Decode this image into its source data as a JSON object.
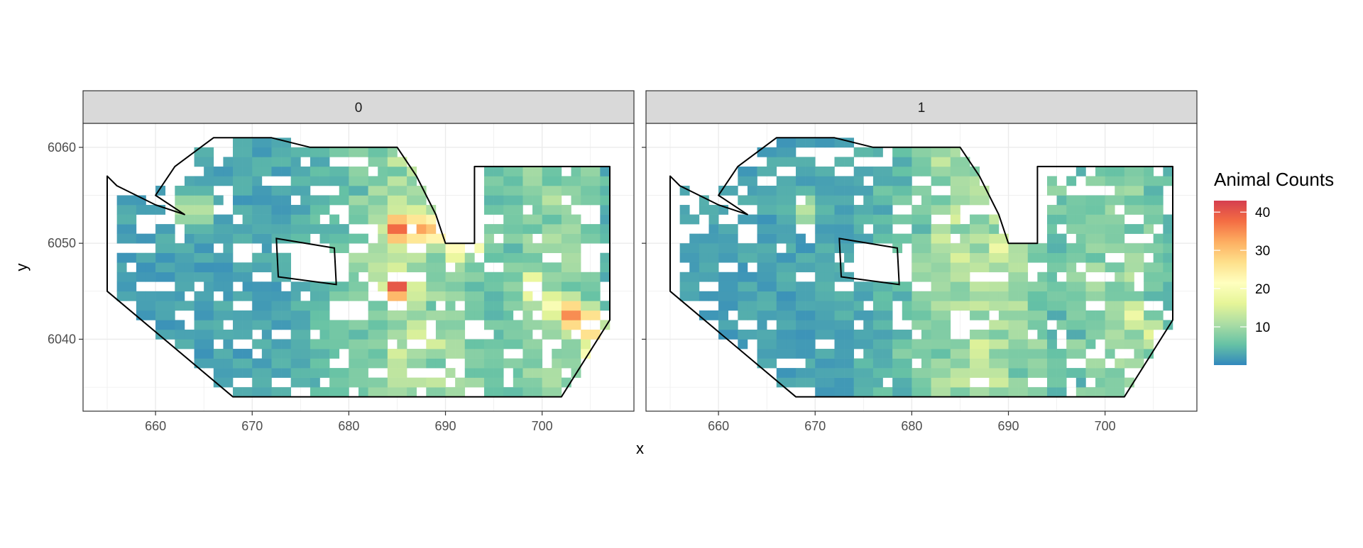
{
  "chart_data": {
    "type": "heatmap",
    "facet_variable_values": [
      "0",
      "1"
    ],
    "xlabel": "x",
    "ylabel": "y",
    "xlim": [
      652.5,
      709.5
    ],
    "ylim": [
      6032.5,
      6062.5
    ],
    "x_ticks": [
      660,
      670,
      680,
      690,
      700
    ],
    "y_ticks": [
      6040,
      6050,
      6060
    ],
    "legend": {
      "title": "Animal Counts",
      "position": "right",
      "ticks": [
        10,
        20,
        30,
        40
      ],
      "range": [
        0,
        43
      ],
      "colors": [
        "#3288BD",
        "#66C2A5",
        "#ABDDA4",
        "#E6F598",
        "#FFFFBF",
        "#FEE08B",
        "#FDAE61",
        "#F46D43",
        "#D53E4F"
      ]
    },
    "grid": "on",
    "cell_size": 1,
    "transects_x": [
      656,
      658,
      660,
      662,
      664,
      666,
      668,
      670,
      672,
      674,
      676,
      678,
      680,
      682,
      684,
      686,
      688,
      690,
      692,
      694,
      696,
      698,
      700,
      702,
      704,
      706
    ],
    "survey_area_boundary": [
      [
        655,
        6057
      ],
      [
        655,
        6045
      ],
      [
        668,
        6034
      ],
      [
        702,
        6034
      ],
      [
        707,
        6042
      ],
      [
        707,
        6058
      ],
      [
        693,
        6058
      ],
      [
        693,
        6050
      ],
      [
        690,
        6050
      ],
      [
        689,
        6053
      ],
      [
        687,
        6057
      ],
      [
        685,
        6060
      ],
      [
        683,
        6060
      ],
      [
        676,
        6060
      ],
      [
        672,
        6061
      ],
      [
        666,
        6061
      ],
      [
        662,
        6058
      ],
      [
        660,
        6055
      ],
      [
        663,
        6053
      ],
      [
        660,
        6054
      ],
      [
        656,
        6056
      ]
    ],
    "exclusion_zone": [
      [
        672.5,
        6050.5
      ],
      [
        678.5,
        6049.5
      ],
      [
        678.7,
        6045.7
      ],
      [
        672.7,
        6046.5
      ]
    ],
    "panels": [
      {
        "label": "0",
        "hotspots": [
          {
            "x": 663,
            "y": 6053,
            "value": 15
          },
          {
            "x": 681,
            "y": 6048,
            "value": 14
          },
          {
            "x": 684,
            "y": 6051,
            "value": 38
          },
          {
            "x": 684,
            "y": 6045,
            "value": 40
          },
          {
            "x": 686,
            "y": 6051,
            "value": 33
          },
          {
            "x": 688,
            "y": 6051,
            "value": 30
          },
          {
            "x": 690,
            "y": 6049,
            "value": 22
          },
          {
            "x": 692,
            "y": 6050,
            "value": 25
          },
          {
            "x": 698,
            "y": 6045,
            "value": 22
          },
          {
            "x": 700,
            "y": 6043,
            "value": 20
          },
          {
            "x": 702,
            "y": 6042,
            "value": 35
          },
          {
            "x": 704,
            "y": 6041,
            "value": 34
          },
          {
            "x": 704,
            "y": 6038,
            "value": 20
          }
        ]
      },
      {
        "label": "1",
        "hotspots": [
          {
            "x": 668,
            "y": 6053,
            "value": 12
          },
          {
            "x": 682,
            "y": 6050,
            "value": 14
          },
          {
            "x": 684,
            "y": 6048,
            "value": 15
          },
          {
            "x": 688,
            "y": 6049,
            "value": 18
          },
          {
            "x": 686,
            "y": 6046,
            "value": 16
          },
          {
            "x": 690,
            "y": 6047,
            "value": 12
          },
          {
            "x": 698,
            "y": 6046,
            "value": 14
          },
          {
            "x": 702,
            "y": 6042,
            "value": 18
          },
          {
            "x": 704,
            "y": 6040,
            "value": 16
          }
        ]
      }
    ]
  }
}
